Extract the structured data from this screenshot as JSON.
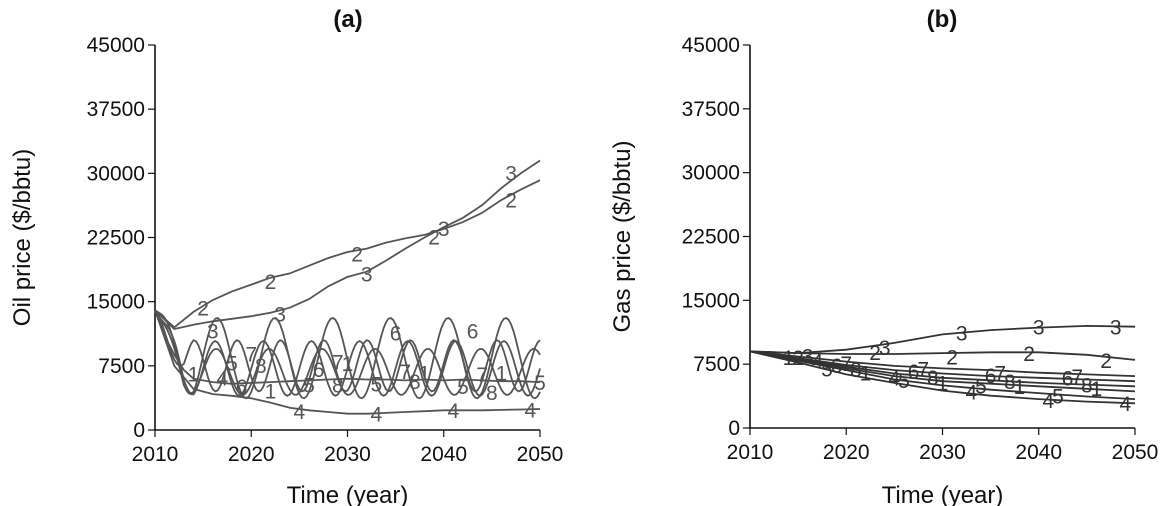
{
  "chart_data": [
    {
      "type": "line",
      "title": "(a)",
      "xlabel": "Time (year)",
      "ylabel": "Oil price ($/bbtu)",
      "xlim": [
        2010,
        2050
      ],
      "ylim": [
        0,
        45000
      ],
      "xticks": [
        "2010",
        "2020",
        "2030",
        "2040",
        "2050"
      ],
      "yticks": [
        "0",
        "7500",
        "15000",
        "22500",
        "30000",
        "37500",
        "45000"
      ],
      "line_color": "#555555",
      "series": [
        {
          "name": "1",
          "x": [
            2010,
            2011,
            2012,
            2013,
            2014,
            2016,
            2018,
            2020,
            2022,
            2024,
            2026,
            2028,
            2030,
            2032,
            2034,
            2036,
            2038,
            2040,
            2042,
            2044,
            2046,
            2048,
            2050
          ],
          "y": [
            14000,
            11000,
            8800,
            7000,
            6000,
            5600,
            5400,
            5500,
            5600,
            5700,
            5800,
            5900,
            6000,
            5900,
            5900,
            5800,
            5900,
            5800,
            5900,
            5800,
            5700,
            5700,
            5600
          ]
        },
        {
          "name": "2",
          "x": [
            2010,
            2012,
            2014,
            2016,
            2018,
            2020,
            2022,
            2024,
            2026,
            2028,
            2030,
            2032,
            2034,
            2036,
            2038,
            2040,
            2042,
            2044,
            2046,
            2048,
            2050
          ],
          "y": [
            14000,
            12000,
            13800,
            15200,
            16200,
            17000,
            17800,
            18300,
            19200,
            20100,
            20800,
            21200,
            21900,
            22400,
            22800,
            23500,
            24300,
            25400,
            26900,
            28100,
            29200
          ]
        },
        {
          "name": "3",
          "x": [
            2010,
            2012,
            2014,
            2016,
            2018,
            2020,
            2022,
            2024,
            2026,
            2028,
            2030,
            2032,
            2034,
            2036,
            2038,
            2040,
            2042,
            2044,
            2046,
            2048,
            2050
          ],
          "y": [
            14000,
            11800,
            12300,
            12700,
            13000,
            13300,
            13700,
            14300,
            15300,
            16800,
            17900,
            18500,
            19800,
            21200,
            22500,
            23700,
            24800,
            26300,
            28300,
            30000,
            31500
          ]
        },
        {
          "name": "4",
          "x": [
            2010,
            2012,
            2014,
            2016,
            2018,
            2020,
            2022,
            2024,
            2026,
            2028,
            2030,
            2032,
            2034,
            2036,
            2038,
            2040,
            2042,
            2044,
            2046,
            2048,
            2050
          ],
          "y": [
            14000,
            7500,
            4800,
            4200,
            4000,
            3700,
            3200,
            2600,
            2300,
            2100,
            1900,
            1900,
            2000,
            2100,
            2200,
            2300,
            2300,
            2300,
            2350,
            2400,
            2450
          ]
        }
      ],
      "oscillating_series": [
        {
          "name": "5",
          "base": 7200,
          "amplitude": 3200,
          "period": 5.0,
          "phase": 0.0
        },
        {
          "name": "6",
          "base": 8400,
          "amplitude": 4700,
          "period": 6.0,
          "phase": 1.1
        },
        {
          "name": "7",
          "base": 7500,
          "amplitude": 3000,
          "period": 4.5,
          "phase": 2.2
        },
        {
          "name": "8",
          "base": 6800,
          "amplitude": 2700,
          "period": 5.5,
          "phase": 0.6
        }
      ],
      "labels": [
        {
          "text": "3",
          "x": 2047,
          "y": 30000
        },
        {
          "text": "2",
          "x": 2047,
          "y": 26800
        },
        {
          "text": "3",
          "x": 2040,
          "y": 23500
        },
        {
          "text": "2",
          "x": 2039,
          "y": 22500
        },
        {
          "text": "2",
          "x": 2031,
          "y": 20500
        },
        {
          "text": "3",
          "x": 2032,
          "y": 18200
        },
        {
          "text": "2",
          "x": 2022,
          "y": 17300
        },
        {
          "text": "3",
          "x": 2023,
          "y": 13500
        },
        {
          "text": "2",
          "x": 2015,
          "y": 14200
        },
        {
          "text": "3",
          "x": 2016,
          "y": 11500
        },
        {
          "text": "6",
          "x": 2035,
          "y": 11300
        },
        {
          "text": "6",
          "x": 2043,
          "y": 11500
        },
        {
          "text": "5",
          "x": 2018,
          "y": 7800
        },
        {
          "text": "7",
          "x": 2020,
          "y": 8800
        },
        {
          "text": "8",
          "x": 2021,
          "y": 7500
        },
        {
          "text": "1",
          "x": 2014,
          "y": 6500
        },
        {
          "text": "4",
          "x": 2017,
          "y": 6000
        },
        {
          "text": "6",
          "x": 2019,
          "y": 5000
        },
        {
          "text": "1",
          "x": 2022,
          "y": 4500
        },
        {
          "text": "6",
          "x": 2027,
          "y": 7000
        },
        {
          "text": "7",
          "x": 2029,
          "y": 7900
        },
        {
          "text": "1",
          "x": 2030,
          "y": 7700
        },
        {
          "text": "5",
          "x": 2026,
          "y": 5200
        },
        {
          "text": "8",
          "x": 2029,
          "y": 5200
        },
        {
          "text": "5",
          "x": 2033,
          "y": 5300
        },
        {
          "text": "7",
          "x": 2036,
          "y": 6800
        },
        {
          "text": "8",
          "x": 2037,
          "y": 5600
        },
        {
          "text": "1",
          "x": 2038,
          "y": 6600
        },
        {
          "text": "5",
          "x": 2042,
          "y": 5000
        },
        {
          "text": "7",
          "x": 2044,
          "y": 6400
        },
        {
          "text": "1",
          "x": 2046,
          "y": 6600
        },
        {
          "text": "8",
          "x": 2045,
          "y": 4300
        },
        {
          "text": "5",
          "x": 2050,
          "y": 5500
        },
        {
          "text": "4",
          "x": 2025,
          "y": 2100
        },
        {
          "text": "4",
          "x": 2033,
          "y": 1800
        },
        {
          "text": "4",
          "x": 2041,
          "y": 2200
        },
        {
          "text": "4",
          "x": 2049,
          "y": 2300
        }
      ]
    },
    {
      "type": "line",
      "title": "(b)",
      "xlabel": "Time (year)",
      "ylabel": "Gas price ($/bbtu)",
      "xlim": [
        2010,
        2050
      ],
      "ylim": [
        0,
        45000
      ],
      "xticks": [
        "2010",
        "2020",
        "2030",
        "2040",
        "2050"
      ],
      "yticks": [
        "0",
        "7500",
        "15000",
        "22500",
        "30000",
        "37500",
        "45000"
      ],
      "line_color": "#333333",
      "series": [
        {
          "name": "1",
          "x": [
            2010,
            2015,
            2020,
            2025,
            2030,
            2035,
            2040,
            2045,
            2050
          ],
          "y": [
            9000,
            8000,
            7000,
            6100,
            5500,
            5200,
            4900,
            4600,
            4300
          ]
        },
        {
          "name": "2",
          "x": [
            2010,
            2015,
            2020,
            2025,
            2030,
            2035,
            2040,
            2045,
            2050
          ],
          "y": [
            9000,
            8800,
            8700,
            8700,
            8800,
            8900,
            8900,
            8600,
            8000
          ]
        },
        {
          "name": "3",
          "x": [
            2010,
            2015,
            2020,
            2025,
            2030,
            2035,
            2040,
            2045,
            2050
          ],
          "y": [
            9000,
            8800,
            9200,
            10000,
            11000,
            11500,
            11800,
            12000,
            11900
          ]
        },
        {
          "name": "4",
          "x": [
            2010,
            2015,
            2020,
            2025,
            2030,
            2035,
            2040,
            2045,
            2050
          ],
          "y": [
            9000,
            7700,
            6300,
            5300,
            4400,
            3800,
            3400,
            3100,
            2900
          ]
        },
        {
          "name": "5",
          "x": [
            2010,
            2015,
            2020,
            2025,
            2030,
            2035,
            2040,
            2045,
            2050
          ],
          "y": [
            9000,
            7900,
            6800,
            5700,
            5000,
            4500,
            4100,
            3700,
            3400
          ]
        },
        {
          "name": "6",
          "x": [
            2010,
            2015,
            2020,
            2025,
            2030,
            2035,
            2040,
            2045,
            2050
          ],
          "y": [
            9000,
            8200,
            7400,
            6800,
            6400,
            6100,
            5900,
            5700,
            5500
          ]
        },
        {
          "name": "7",
          "x": [
            2010,
            2015,
            2020,
            2025,
            2030,
            2035,
            2040,
            2045,
            2050
          ],
          "y": [
            9000,
            8400,
            7800,
            7300,
            7000,
            6800,
            6500,
            6300,
            6100
          ]
        },
        {
          "name": "8",
          "x": [
            2010,
            2015,
            2020,
            2025,
            2030,
            2035,
            2040,
            2045,
            2050
          ],
          "y": [
            9000,
            8100,
            7200,
            6400,
            5900,
            5600,
            5300,
            5100,
            4900
          ]
        }
      ],
      "labels": [
        {
          "text": "1",
          "x": 2014,
          "y": 8200
        },
        {
          "text": "2",
          "x": 2015,
          "y": 8200
        },
        {
          "text": "3",
          "x": 2016,
          "y": 8400
        },
        {
          "text": "4",
          "x": 2017,
          "y": 7800
        },
        {
          "text": "5",
          "x": 2018,
          "y": 6900
        },
        {
          "text": "6",
          "x": 2019,
          "y": 7300
        },
        {
          "text": "7",
          "x": 2020,
          "y": 7500
        },
        {
          "text": "8",
          "x": 2021,
          "y": 6800
        },
        {
          "text": "1",
          "x": 2022,
          "y": 6400
        },
        {
          "text": "2",
          "x": 2023,
          "y": 8800
        },
        {
          "text": "3",
          "x": 2024,
          "y": 9400
        },
        {
          "text": "4",
          "x": 2025,
          "y": 5800
        },
        {
          "text": "5",
          "x": 2026,
          "y": 5500
        },
        {
          "text": "6",
          "x": 2027,
          "y": 6600
        },
        {
          "text": "7",
          "x": 2028,
          "y": 6900
        },
        {
          "text": "8",
          "x": 2029,
          "y": 5900
        },
        {
          "text": "1",
          "x": 2030,
          "y": 5200
        },
        {
          "text": "2",
          "x": 2031,
          "y": 8300
        },
        {
          "text": "3",
          "x": 2032,
          "y": 11100
        },
        {
          "text": "4",
          "x": 2033,
          "y": 4200
        },
        {
          "text": "5",
          "x": 2034,
          "y": 4900
        },
        {
          "text": "6",
          "x": 2035,
          "y": 6100
        },
        {
          "text": "7",
          "x": 2036,
          "y": 6400
        },
        {
          "text": "8",
          "x": 2037,
          "y": 5400
        },
        {
          "text": "1",
          "x": 2038,
          "y": 4800
        },
        {
          "text": "2",
          "x": 2039,
          "y": 8700
        },
        {
          "text": "3",
          "x": 2040,
          "y": 11800
        },
        {
          "text": "4",
          "x": 2041,
          "y": 3200
        },
        {
          "text": "5",
          "x": 2042,
          "y": 3700
        },
        {
          "text": "6",
          "x": 2043,
          "y": 5800
        },
        {
          "text": "7",
          "x": 2044,
          "y": 6000
        },
        {
          "text": "8",
          "x": 2045,
          "y": 5000
        },
        {
          "text": "1",
          "x": 2046,
          "y": 4600
        },
        {
          "text": "2",
          "x": 2047,
          "y": 7900
        },
        {
          "text": "3",
          "x": 2048,
          "y": 11800
        },
        {
          "text": "4",
          "x": 2049,
          "y": 2800
        }
      ]
    }
  ]
}
